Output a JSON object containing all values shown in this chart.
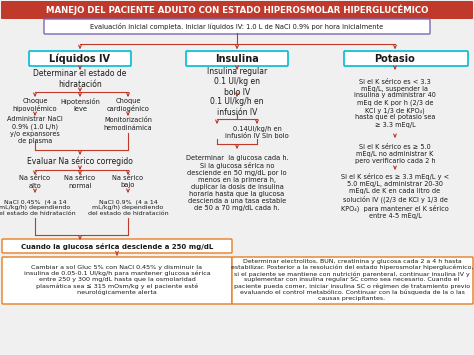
{
  "title": "MANEJO DEL PACIENTE ADULTO CON ESTADO HIPEROSMOLAR HIPERGLUCÉMICO",
  "title_bg": "#c0392b",
  "title_fg": "#ffffff",
  "eval_box": "Evaluación inicial completa. Iniciar líquidos IV: 1.0 L de NaCl 0.9% por hora inicialmente",
  "eval_border": "#7b68b5",
  "col_headers": [
    "Líquidos IV",
    "Insulina",
    "Potasio"
  ],
  "col_header_border": "#00bcd4",
  "bg_color": "#f0f0f0",
  "liquidos_text1": "Determinar el estado de\nhidratación",
  "liquidos_sub": [
    "Choque\nhipovolémico",
    "Hipotensión\nleve",
    "Choque\ncardiogénico"
  ],
  "liquidos_sub2a": "Administrar NaCl\n0.9% (1.0 L/h)\ny/o expansores\nde plasma",
  "liquidos_sub2b": "Monitorización\nhemodinámica",
  "liquidos_evaluar": "Evaluar Na sérico corregido",
  "na_sub": [
    "Na sérico\nalto",
    "Na sérico\nnormal",
    "Na sérico\nbajo"
  ],
  "nacl1": "NaCl 0.45%  (4 a 14\nmL/kg/h) dependiendo\ndel estado de hidratación",
  "nacl2": "NaCl 0.9%  (4 a 14\nmL/kg/h) dependiendo\ndel estado de hidratación",
  "glucosa_box": "Cuando la glucosa sérica desciende a 250 mg/dL",
  "glucosa_border": "#e67e22",
  "cambiar_box": "Cambiar a sol Gluc 5% con NaCl 0.45% y disminuir la\ninsulinа de 0.05-0.1 UI/kg/h para mantener glucosa sérica\nentre 250 y 300 mg/dL hasta que la osmolaridad\nplasmática sea ≤ 315 mOsm/kg y el paciente esté\nneurológicamente alerta",
  "cambiar_border": "#e67e22",
  "insulina_text1": "Insulina regular\n0.1 UI/kg en\nbolo IV",
  "insulina_text2": "0.1 UI/kg/h en\ninfusión IV",
  "insulina_text3": "0.14UI/kg/h en\ninfusión IV Sin bolo",
  "insulina_text4": "Determinar  la glucosa cada h.\nSi la glucosa sérica no\ndesciende en 50 mg/dL por lo\nmenos en la primera h,\nduplicar la dosis de insulina\nhoraria hasta que la glucosa\ndescienda a una tasa estable\nde 50 a 70 mg/dL cada h.",
  "potasio_text1": "Si el K sérico es < 3.3\nmEq/L, suspender la\ninsulina y administrar 40\nmEq de K por h (2/3 de\nKCl y 1/3 de KPO₄)\nhasta que el potasio sea\n≥ 3.3 mEq/L",
  "potasio_text2": "Si el K sérico es ≥ 5.0\nmEq/L no administrar K\npero verificarlo cada 2 h",
  "potasio_text3": "Si el K sérico es ≥ 3.3 mEq/L y <\n5.0 mEq/L, administrar 20-30\nmEq/L de K en cada litro de\nsolución IV ((2/3 de KCl y 1/3 de\nKPO₄)  para mantener el K sérico\nentre 4-5 mEq/L",
  "bottom_right_box": "Determinar electrolitos, BUN, creatinina y glucosa cada 2 a 4 h hasta\nestabilizar. Posterior a la resolución del estado hiperosmolar hiperglucémico,\nsi el paciente se mantiene con nutrición parenteral, continuar insulina IV y\nsuplementar con insulina regular SC como sea necesario. Cuando el\npaciente pueda comer, iniciar insulina SC o régimen de tratamiento previo\nevaluando el control metabólico. Continuar con la búsqueda de la o las\ncausas precipitantes.",
  "bottom_right_border": "#e67e22",
  "arrow_color": "#c0392b",
  "text_color": "#1a1a1a",
  "font_size": 5.5
}
